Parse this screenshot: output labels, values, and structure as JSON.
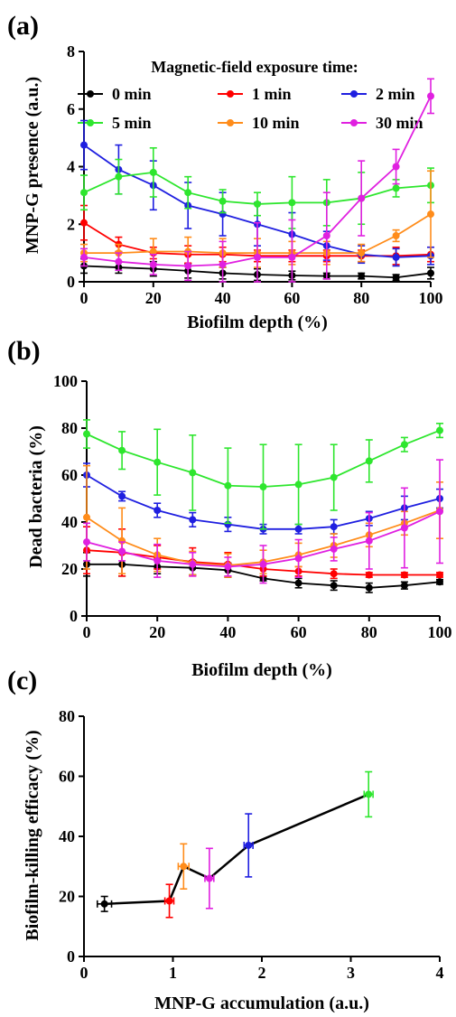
{
  "chart_data": [
    {
      "panel_label": "(a)",
      "type": "line",
      "xlabel": "Biofilm depth (%)",
      "ylabel": "MNP-G presence (a.u.)",
      "xlim": [
        0,
        100
      ],
      "ylim": [
        0,
        8
      ],
      "xticks": [
        "0",
        "20",
        "40",
        "60",
        "80",
        "100"
      ],
      "yticks": [
        "0",
        "2",
        "4",
        "6",
        "8"
      ],
      "legend_title": "Magnetic-field exposure time:",
      "legend_position": "top",
      "x": [
        0,
        10,
        20,
        30,
        40,
        50,
        60,
        70,
        80,
        90,
        100
      ],
      "series": [
        {
          "name": "0 min",
          "color": "#000000",
          "values": [
            0.55,
            0.5,
            0.45,
            0.38,
            0.3,
            0.25,
            0.22,
            0.2,
            0.2,
            0.15,
            0.3
          ],
          "errors": [
            0.25,
            0.2,
            0.25,
            0.25,
            0.2,
            0.2,
            0.15,
            0.1,
            0.1,
            0.1,
            0.2
          ]
        },
        {
          "name": "1 min",
          "color": "#ff0000",
          "values": [
            2.05,
            1.3,
            1.0,
            0.95,
            0.95,
            0.9,
            0.9,
            0.9,
            0.9,
            0.9,
            0.95
          ],
          "errors": [
            0.6,
            0.25,
            0.2,
            0.3,
            0.25,
            0.2,
            0.2,
            0.2,
            0.2,
            0.3,
            0.25
          ]
        },
        {
          "name": "2 min",
          "color": "#1f1fe0",
          "values": [
            4.75,
            3.9,
            3.35,
            2.65,
            2.35,
            2.0,
            1.65,
            1.25,
            0.95,
            0.85,
            0.9
          ],
          "errors": [
            0.85,
            0.85,
            0.85,
            0.8,
            0.75,
            0.75,
            0.75,
            0.5,
            0.3,
            0.3,
            0.3
          ]
        },
        {
          "name": "5 min",
          "color": "#2ee62e",
          "values": [
            3.1,
            3.65,
            3.8,
            3.1,
            2.8,
            2.7,
            2.75,
            2.75,
            2.9,
            3.25,
            3.35
          ],
          "errors": [
            0.6,
            0.6,
            0.85,
            0.55,
            0.4,
            0.4,
            0.9,
            0.8,
            0.9,
            0.3,
            0.6
          ]
        },
        {
          "name": "10 min",
          "color": "#ff8c1a",
          "values": [
            1.0,
            1.0,
            1.05,
            1.05,
            1.0,
            1.0,
            1.0,
            1.0,
            1.0,
            1.6,
            2.35
          ],
          "errors": [
            0.3,
            0.3,
            0.45,
            0.5,
            0.5,
            0.5,
            0.4,
            0.4,
            0.3,
            0.2,
            1.5
          ]
        },
        {
          "name": "30 min",
          "color": "#e020e0",
          "values": [
            0.85,
            0.7,
            0.6,
            0.55,
            0.6,
            0.85,
            0.85,
            1.6,
            2.9,
            4.0,
            6.45
          ],
          "errors": [
            0.3,
            0.3,
            0.35,
            0.5,
            0.8,
            1.2,
            1.3,
            1.5,
            1.3,
            0.6,
            0.6
          ]
        }
      ]
    },
    {
      "panel_label": "(b)",
      "type": "line",
      "xlabel": "Biofilm depth (%)",
      "ylabel": "Dead bacteria (%)",
      "xlim": [
        0,
        100
      ],
      "ylim": [
        0,
        100
      ],
      "xticks": [
        "0",
        "20",
        "40",
        "60",
        "80",
        "100"
      ],
      "yticks": [
        "0",
        "20",
        "40",
        "60",
        "80",
        "100"
      ],
      "x": [
        0,
        10,
        20,
        30,
        40,
        50,
        60,
        70,
        80,
        90,
        100
      ],
      "series": [
        {
          "color": "#000000",
          "values": [
            22,
            22,
            21,
            20.5,
            19.5,
            16,
            14,
            13,
            12,
            13,
            14.5
          ],
          "errors": [
            5,
            5,
            3,
            3,
            3,
            1,
            2,
            2,
            2,
            1.5,
            1
          ]
        },
        {
          "color": "#ff0000",
          "values": [
            28,
            27,
            25,
            23,
            22,
            20,
            19,
            18,
            17.5,
            17.5,
            17.5
          ],
          "errors": [
            10,
            10,
            5,
            6,
            5,
            3,
            2,
            2,
            1,
            1,
            1
          ]
        },
        {
          "color": "#1f1fe0",
          "values": [
            60,
            51,
            45,
            41,
            39,
            37,
            37,
            38,
            41.5,
            46,
            50
          ],
          "errors": [
            5,
            2,
            3,
            3,
            3,
            2,
            2,
            3,
            3,
            5,
            4
          ]
        },
        {
          "color": "#2ee62e",
          "values": [
            77.5,
            70.5,
            65.5,
            61,
            55.5,
            55,
            56,
            59,
            66,
            73,
            79
          ],
          "errors": [
            6,
            8,
            14,
            16,
            16,
            18,
            17,
            14,
            9,
            3,
            3
          ]
        },
        {
          "color": "#ff8c1a",
          "values": [
            42,
            32,
            26,
            22.5,
            21.5,
            23,
            26,
            30,
            34.5,
            39.5,
            45
          ],
          "errors": [
            22,
            14,
            7,
            5,
            5,
            5,
            5,
            5,
            5,
            5,
            12
          ]
        },
        {
          "color": "#e020e0",
          "values": [
            31.5,
            27.5,
            23.5,
            22,
            21,
            22,
            24.5,
            28.5,
            32,
            37.5,
            44.5
          ],
          "errors": [
            8,
            4,
            7,
            5,
            4,
            8,
            8,
            5,
            12,
            17,
            22
          ]
        }
      ]
    },
    {
      "panel_label": "(c)",
      "type": "line",
      "xlabel": "MNP-G accumulation (a.u.)",
      "ylabel": "Biofilm-killing efficacy (%)",
      "xlim": [
        0,
        4
      ],
      "ylim": [
        0,
        80
      ],
      "xticks": [
        "0",
        "1",
        "2",
        "3",
        "4"
      ],
      "yticks": [
        "0",
        "20",
        "40",
        "60",
        "80"
      ],
      "points": [
        {
          "x": 0.23,
          "y": 17.5,
          "xerr": 0.08,
          "yerr": 2.5,
          "color": "#000000"
        },
        {
          "x": 0.96,
          "y": 18.5,
          "xerr": 0.05,
          "yerr": 5.5,
          "color": "#ff0000"
        },
        {
          "x": 1.12,
          "y": 30.0,
          "xerr": 0.06,
          "yerr": 7.5,
          "color": "#ff8c1a"
        },
        {
          "x": 1.41,
          "y": 26.0,
          "xerr": 0.05,
          "yerr": 10.0,
          "color": "#e020e0"
        },
        {
          "x": 1.85,
          "y": 37.0,
          "xerr": 0.05,
          "yerr": 10.5,
          "color": "#1f1fe0"
        },
        {
          "x": 3.2,
          "y": 54.0,
          "xerr": 0.05,
          "yerr": 7.5,
          "color": "#2ee62e"
        }
      ]
    }
  ]
}
